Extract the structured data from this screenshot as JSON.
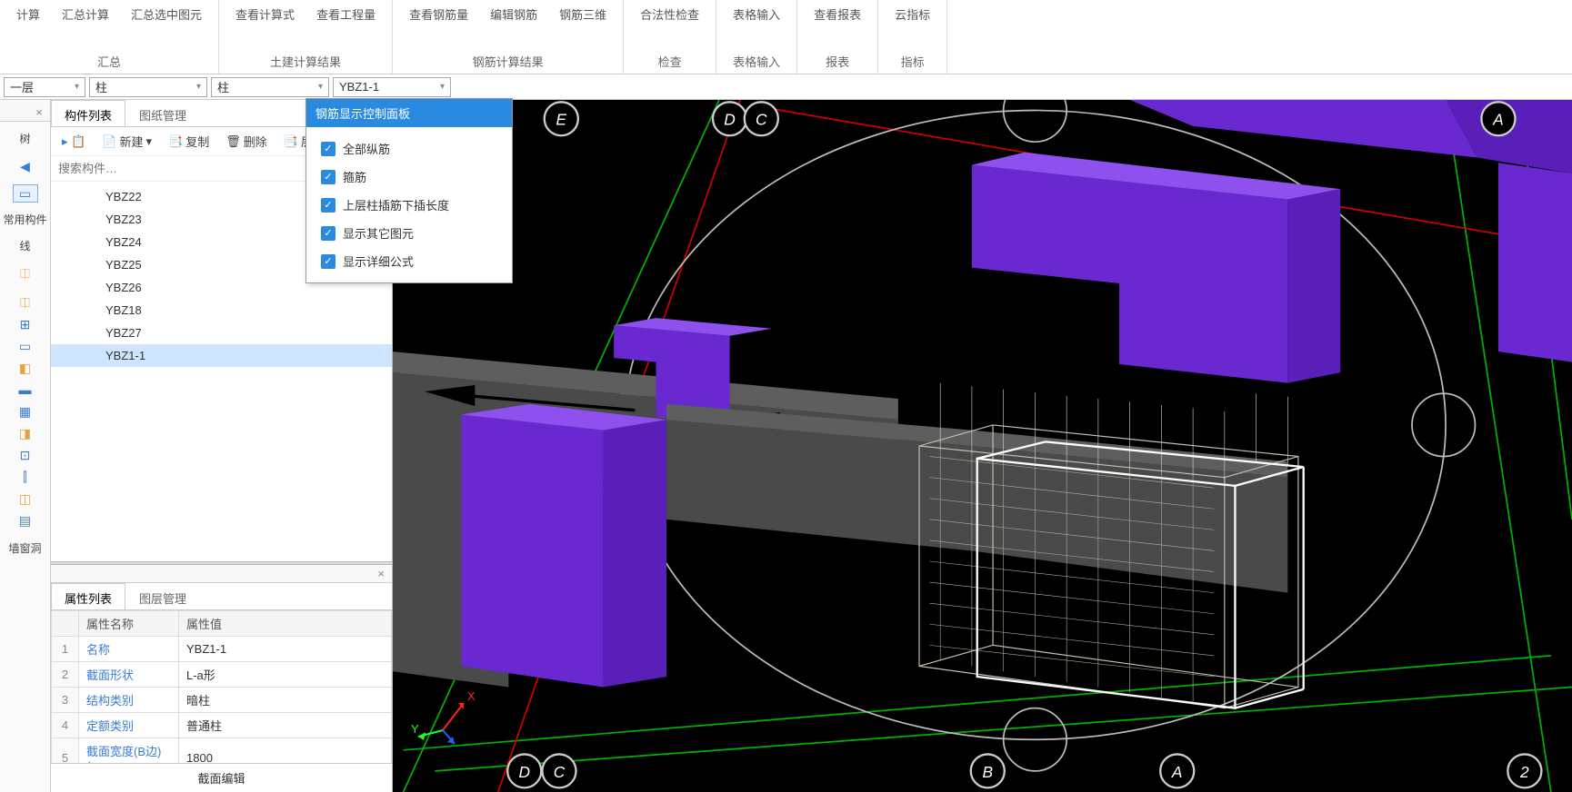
{
  "ribbon": {
    "groups": [
      {
        "items": [
          "计算",
          "汇总计算",
          "汇总选中图元"
        ],
        "label": "汇总"
      },
      {
        "items": [
          "查看计算式",
          "查看工程量"
        ],
        "label": "土建计算结果"
      },
      {
        "items": [
          "查看钢筋量",
          "编辑钢筋",
          "钢筋三维"
        ],
        "label": "钢筋计算结果"
      },
      {
        "items": [
          "合法性检查"
        ],
        "label": "检查"
      },
      {
        "items": [
          "表格输入"
        ],
        "label": "表格输入"
      },
      {
        "items": [
          "查看报表"
        ],
        "label": "报表"
      },
      {
        "items": [
          "云指标"
        ],
        "label": "指标"
      }
    ]
  },
  "dropdowns": {
    "floor": "一层",
    "category1": "柱",
    "category2": "柱",
    "component": "YBZ1-1"
  },
  "tree_panel": {
    "title": "树",
    "side_items": [
      "常用构件",
      "线",
      "墙窗洞"
    ],
    "icons": [
      "column-icon",
      "stirrup-icon",
      "beam-icon",
      "slab-icon",
      "plate-icon",
      "wall-icon",
      "panel-icon",
      "rebar-icon",
      "brace-icon",
      "joint-icon",
      "support-icon"
    ]
  },
  "component_list": {
    "tabs": {
      "list": "构件列表",
      "drawing": "图纸管理"
    },
    "toolbar": {
      "new": "新建",
      "copy": "复制",
      "delete": "删除",
      "layer": "层"
    },
    "icon_btn": "📋",
    "search_placeholder": "搜索构件…",
    "items": [
      "YBZ22",
      "YBZ23",
      "YBZ24",
      "YBZ25",
      "YBZ26",
      "YBZ18",
      "YBZ27",
      "YBZ1-1"
    ],
    "selected": "YBZ1-1"
  },
  "property_panel": {
    "tabs": {
      "props": "属性列表",
      "layers": "图层管理"
    },
    "headers": {
      "name": "属性名称",
      "value": "属性值"
    },
    "rows": [
      {
        "n": "1",
        "name": "名称",
        "value": "YBZ1-1"
      },
      {
        "n": "2",
        "name": "截面形状",
        "value": "L-a形"
      },
      {
        "n": "3",
        "name": "结构类别",
        "value": "暗柱"
      },
      {
        "n": "4",
        "name": "定额类别",
        "value": "普通柱"
      },
      {
        "n": "5",
        "name": "截面宽度(B边)(…",
        "value": "1800"
      }
    ],
    "edit_btn": "截面编辑"
  },
  "rebar_popup": {
    "title": "钢筋显示控制面板",
    "options": [
      "全部纵筋",
      "箍筋",
      "上层柱插筋下插长度",
      "显示其它图元",
      "显示详细公式"
    ]
  },
  "viewport": {
    "bg": "#000000",
    "grid_colors": {
      "red": "#cc0000",
      "green": "#00b000"
    },
    "shape_colors": {
      "column": "#7a2fe8",
      "wall": "#4a4a4a",
      "wall_light": "#5e5e5e",
      "cage": "#b9b0a0",
      "navball": "#cccccc"
    },
    "labels": [
      "E",
      "D",
      "C",
      "A",
      "D",
      "C",
      "B",
      "A",
      "2"
    ],
    "axis": {
      "x": "X",
      "x_color": "#ff2020",
      "y": "Y",
      "y_color": "#20ff20",
      "z_color": "#2060ff"
    }
  }
}
